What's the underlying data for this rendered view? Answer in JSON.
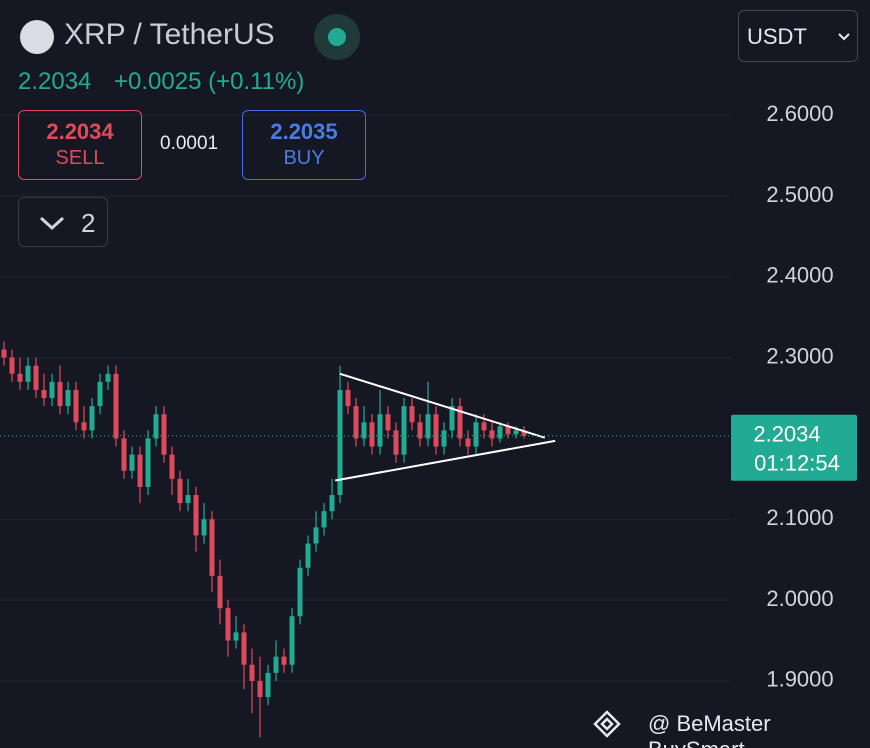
{
  "header": {
    "pair": "XRP / TetherUS",
    "price": "2.2034",
    "change": "+0.0025 (+0.11%)",
    "currency": "USDT"
  },
  "order_panel": {
    "sell_price": "2.2034",
    "sell_label": "SELL",
    "spread": "0.0001",
    "buy_price": "2.2035",
    "buy_label": "BUY",
    "quantity": "2"
  },
  "watermark": "@ BeMaster BuySmart",
  "chart_data": {
    "type": "candlestick",
    "colors": {
      "up": "#22ab94",
      "down": "#e04a5c"
    },
    "ylim": [
      1.817,
      2.7425
    ],
    "yticks": [
      {
        "value": 2.6,
        "label": "2.6000"
      },
      {
        "value": 2.5,
        "label": "2.5000"
      },
      {
        "value": 2.4,
        "label": "2.4000"
      },
      {
        "value": 2.3,
        "label": "2.3000"
      },
      {
        "value": 2.1,
        "label": "2.1000"
      },
      {
        "value": 2.0,
        "label": "2.0000"
      },
      {
        "value": 1.9,
        "label": "1.9000"
      }
    ],
    "grid": true,
    "open": [
      2.31,
      2.3,
      2.28,
      2.27,
      2.29,
      2.26,
      2.25,
      2.27,
      2.24,
      2.26,
      2.22,
      2.21,
      2.24,
      2.27,
      2.28,
      2.2,
      2.16,
      2.18,
      2.14,
      2.2,
      2.23,
      2.18,
      2.15,
      2.12,
      2.13,
      2.08,
      2.1,
      2.03,
      1.99,
      1.95,
      1.96,
      1.92,
      1.9,
      1.88,
      1.91,
      1.93,
      1.92,
      1.98,
      2.04,
      2.07,
      2.09,
      2.11,
      2.13,
      2.26,
      2.24,
      2.2,
      2.22,
      2.19,
      2.23,
      2.21,
      2.18,
      2.24,
      2.22,
      2.2,
      2.23,
      2.19,
      2.21,
      2.24,
      2.2,
      2.19,
      2.22,
      2.21,
      2.2,
      2.215,
      2.205,
      2.21
    ],
    "high": [
      2.32,
      2.31,
      2.3,
      2.3,
      2.3,
      2.28,
      2.28,
      2.29,
      2.27,
      2.27,
      2.24,
      2.25,
      2.28,
      2.29,
      2.29,
      2.21,
      2.19,
      2.19,
      2.21,
      2.24,
      2.24,
      2.19,
      2.16,
      2.15,
      2.14,
      2.12,
      2.11,
      2.05,
      2.0,
      1.98,
      1.97,
      1.94,
      1.93,
      1.92,
      1.95,
      1.94,
      1.99,
      2.05,
      2.08,
      2.11,
      2.12,
      2.15,
      2.29,
      2.27,
      2.25,
      2.24,
      2.23,
      2.26,
      2.24,
      2.22,
      2.25,
      2.25,
      2.23,
      2.27,
      2.24,
      2.22,
      2.25,
      2.25,
      2.21,
      2.23,
      2.23,
      2.22,
      2.22,
      2.22,
      2.215,
      2.215
    ],
    "low": [
      2.29,
      2.27,
      2.26,
      2.26,
      2.25,
      2.24,
      2.24,
      2.23,
      2.23,
      2.21,
      2.2,
      2.2,
      2.23,
      2.26,
      2.19,
      2.15,
      2.15,
      2.12,
      2.13,
      2.19,
      2.17,
      2.13,
      2.11,
      2.11,
      2.06,
      2.07,
      2.01,
      1.97,
      1.93,
      1.94,
      1.89,
      1.86,
      1.83,
      1.87,
      1.9,
      1.91,
      1.91,
      1.97,
      2.03,
      2.06,
      2.08,
      2.1,
      2.12,
      2.23,
      2.19,
      2.19,
      2.18,
      2.18,
      2.2,
      2.17,
      2.17,
      2.21,
      2.19,
      2.19,
      2.18,
      2.18,
      2.2,
      2.19,
      2.18,
      2.18,
      2.2,
      2.19,
      2.195,
      2.2,
      2.2,
      2.2
    ],
    "close": [
      2.3,
      2.28,
      2.27,
      2.29,
      2.26,
      2.25,
      2.27,
      2.24,
      2.26,
      2.22,
      2.21,
      2.24,
      2.27,
      2.28,
      2.2,
      2.16,
      2.18,
      2.14,
      2.2,
      2.23,
      2.18,
      2.15,
      2.12,
      2.13,
      2.08,
      2.1,
      2.03,
      1.99,
      1.95,
      1.96,
      1.92,
      1.9,
      1.88,
      1.91,
      1.93,
      1.92,
      1.98,
      2.04,
      2.07,
      2.09,
      2.11,
      2.13,
      2.26,
      2.24,
      2.2,
      2.22,
      2.19,
      2.23,
      2.21,
      2.18,
      2.24,
      2.22,
      2.2,
      2.23,
      2.19,
      2.21,
      2.24,
      2.2,
      2.19,
      2.22,
      2.21,
      2.2,
      2.215,
      2.205,
      2.21,
      2.2034
    ],
    "trendlines": [
      {
        "start": [
          42,
          2.28
        ],
        "end": [
          67.6,
          2.201
        ]
      },
      {
        "start": [
          41.4,
          2.148
        ],
        "end": [
          68.9,
          2.197
        ]
      }
    ],
    "last_price": {
      "value": 2.2034,
      "label": "2.2034"
    },
    "countdown": "01:12:54"
  }
}
